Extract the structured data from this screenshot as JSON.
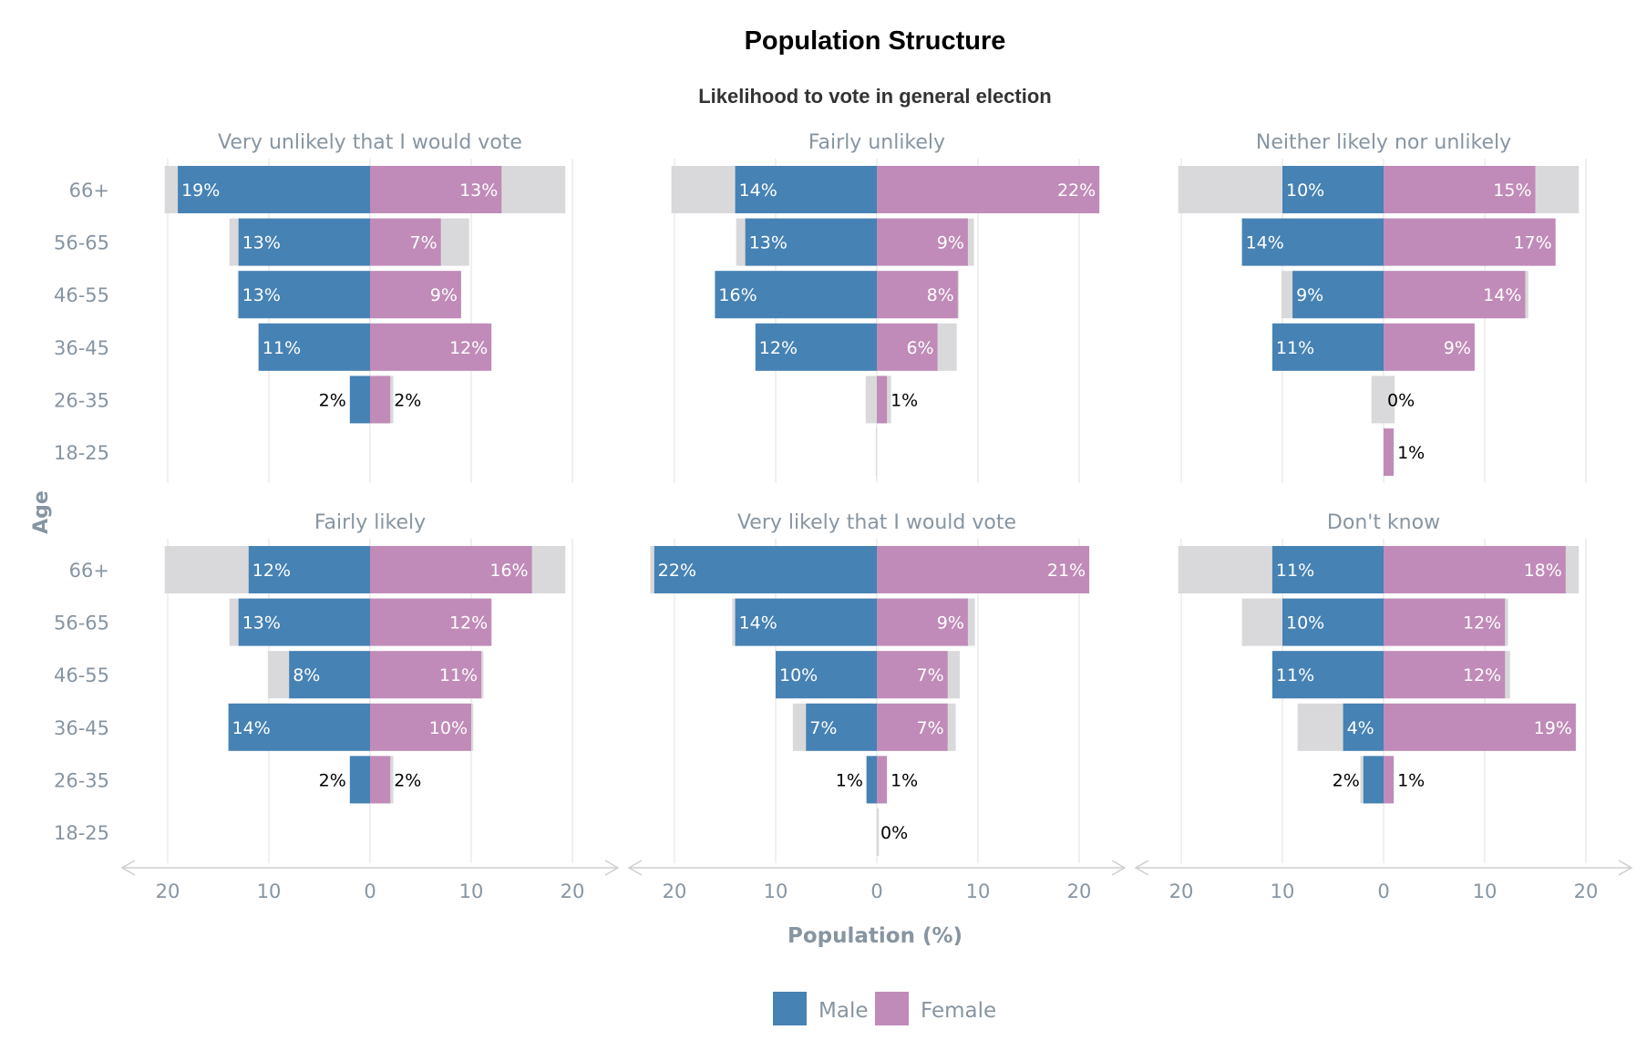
{
  "chart_data": {
    "type": "bar",
    "subtype": "population-pyramid-facets",
    "title": "Population Structure",
    "subtitle": "Likelihood to vote in general election",
    "xlabel": "Population (%)",
    "ylabel": "Age",
    "xlim": [
      -20,
      20
    ],
    "x_ticks": [
      "20",
      "10",
      "0",
      "10",
      "20"
    ],
    "age_groups": [
      "66+",
      "56-65",
      "46-55",
      "36-45",
      "26-35",
      "18-25"
    ],
    "legend": [
      {
        "name": "Male",
        "color": "#4682b4"
      },
      {
        "name": "Female",
        "color": "#c08bb8"
      }
    ],
    "background_color": "#d9d9db",
    "grid": true,
    "legend_position": "bottom",
    "facets": [
      {
        "title": "Very unlikely that I would vote",
        "male": [
          19,
          13,
          13,
          11,
          2,
          null
        ],
        "female": [
          13,
          7,
          9,
          12,
          2,
          null
        ],
        "male_labels": [
          "19%",
          "13%",
          "13%",
          "11%",
          "2%",
          ""
        ],
        "female_labels": [
          "13%",
          "7%",
          "9%",
          "12%",
          "2%",
          ""
        ],
        "bg_male": [
          20.3,
          13.9,
          13.1,
          11.1,
          1.7,
          0
        ],
        "bg_female": [
          19.3,
          9.8,
          9.0,
          11.7,
          2.3,
          0
        ]
      },
      {
        "title": "Fairly unlikely",
        "male": [
          14,
          13,
          16,
          12,
          0,
          null
        ],
        "female": [
          22,
          9,
          8,
          6,
          1,
          null
        ],
        "male_labels": [
          "14%",
          "13%",
          "16%",
          "12%",
          "",
          ""
        ],
        "female_labels": [
          "22%",
          "9%",
          "8%",
          "6%",
          "1%",
          ""
        ],
        "bg_male": [
          20.3,
          13.9,
          15.5,
          11.9,
          1.1,
          0.1
        ],
        "bg_female": [
          21.8,
          9.6,
          8.1,
          7.9,
          1.4,
          0
        ]
      },
      {
        "title": "Neither likely nor unlikely",
        "male": [
          10,
          14,
          9,
          11,
          0,
          null
        ],
        "female": [
          15,
          17,
          14,
          9,
          0,
          1
        ],
        "male_labels": [
          "10%",
          "14%",
          "9%",
          "11%",
          "",
          ""
        ],
        "female_labels": [
          "15%",
          "17%",
          "14%",
          "9%",
          "0%",
          "1%"
        ],
        "bg_male": [
          20.3,
          14.0,
          10.1,
          10.8,
          1.2,
          0
        ],
        "bg_female": [
          19.3,
          16.5,
          14.3,
          8.9,
          1.1,
          0.8
        ]
      },
      {
        "title": "Fairly likely",
        "male": [
          12,
          13,
          8,
          14,
          2,
          null
        ],
        "female": [
          16,
          12,
          11,
          10,
          2,
          null
        ],
        "male_labels": [
          "12%",
          "13%",
          "8%",
          "14%",
          "2%",
          ""
        ],
        "female_labels": [
          "16%",
          "12%",
          "11%",
          "10%",
          "2%",
          ""
        ],
        "bg_male": [
          20.3,
          13.9,
          10.1,
          13.6,
          1.6,
          0
        ],
        "bg_female": [
          19.3,
          12.0,
          11.2,
          10.2,
          2.3,
          0
        ]
      },
      {
        "title": "Very likely that I would vote",
        "male": [
          22,
          14,
          10,
          7,
          1,
          null
        ],
        "female": [
          21,
          9,
          7,
          7,
          1,
          0
        ],
        "male_labels": [
          "22%",
          "14%",
          "10%",
          "7%",
          "1%",
          ""
        ],
        "female_labels": [
          "21%",
          "9%",
          "7%",
          "7%",
          "1%",
          "0%"
        ],
        "bg_male": [
          22.4,
          14.3,
          10.0,
          8.3,
          1.1,
          0
        ],
        "bg_female": [
          20.6,
          9.7,
          8.2,
          7.8,
          1.0,
          0.2
        ]
      },
      {
        "title": "Don't know",
        "male": [
          11,
          10,
          11,
          4,
          2,
          null
        ],
        "female": [
          18,
          12,
          12,
          19,
          1,
          null
        ],
        "male_labels": [
          "11%",
          "10%",
          "11%",
          "4%",
          "2%",
          ""
        ],
        "female_labels": [
          "18%",
          "12%",
          "12%",
          "19%",
          "1%",
          ""
        ],
        "bg_male": [
          20.3,
          14.0,
          10.9,
          8.5,
          2.3,
          0
        ],
        "bg_female": [
          19.3,
          12.3,
          12.5,
          18.6,
          1.0,
          0
        ]
      }
    ]
  }
}
